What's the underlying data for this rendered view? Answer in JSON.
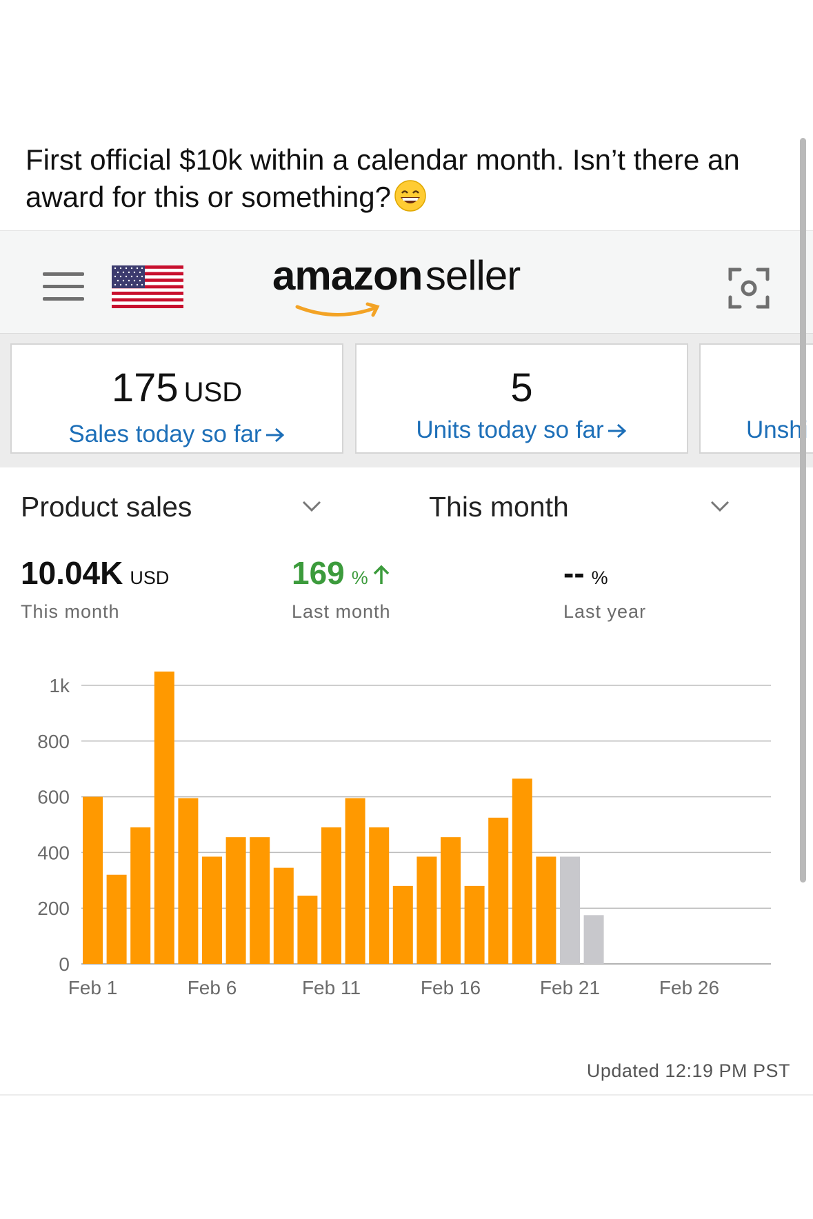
{
  "post": {
    "text": "First official $10k within a calendar month. Isn’t there an award for this or something?",
    "emoji": "grinning-face-icon"
  },
  "header": {
    "logo_bold": "amazon",
    "logo_light": "seller",
    "flag": "us-flag-icon",
    "menu_icon": "hamburger-menu-icon",
    "scan_icon": "scan-icon"
  },
  "cards": [
    {
      "value": "175",
      "unit": "USD",
      "label": "Sales today so far"
    },
    {
      "value": "5",
      "unit": "",
      "label": "Units today so far"
    },
    {
      "value": "",
      "unit": "",
      "label": "Unshi"
    }
  ],
  "dropdowns": {
    "metric": "Product sales",
    "period": "This month"
  },
  "metrics": {
    "main_value": "10.04K",
    "main_unit": "USD",
    "main_label": "This month",
    "change_value": "169",
    "change_unit": "%",
    "change_label": "Last month",
    "year_value": "--",
    "year_unit": "%",
    "year_label": "Last year",
    "colors": {
      "up": "#3c9b3c"
    }
  },
  "chart_data": {
    "type": "bar",
    "categories": [
      "Feb 1",
      "Feb 2",
      "Feb 3",
      "Feb 4",
      "Feb 5",
      "Feb 6",
      "Feb 7",
      "Feb 8",
      "Feb 9",
      "Feb 10",
      "Feb 11",
      "Feb 12",
      "Feb 13",
      "Feb 14",
      "Feb 15",
      "Feb 16",
      "Feb 17",
      "Feb 18",
      "Feb 19",
      "Feb 20",
      "Feb 21",
      "Feb 22",
      "Feb 23",
      "Feb 24",
      "Feb 25",
      "Feb 26",
      "Feb 27",
      "Feb 28",
      "Feb 29"
    ],
    "values": [
      600,
      320,
      490,
      1050,
      595,
      385,
      455,
      455,
      345,
      245,
      490,
      595,
      490,
      280,
      385,
      455,
      280,
      525,
      665,
      385,
      385,
      175,
      null,
      null,
      null,
      null,
      null,
      null,
      null
    ],
    "partial_days": [
      "Feb 21",
      "Feb 22"
    ],
    "colors": {
      "bar": "#ff9900",
      "partial": "#c8c8cc",
      "grid": "#bdbdbd"
    },
    "yticks": [
      0,
      200,
      400,
      600,
      800,
      1000
    ],
    "ytick_labels": [
      "0",
      "200",
      "400",
      "600",
      "800",
      "1k"
    ],
    "xtick_labels": [
      "Feb 1",
      "Feb 6",
      "Feb 11",
      "Feb 16",
      "Feb 21",
      "Feb 26"
    ],
    "xtick_indices": [
      0,
      5,
      10,
      15,
      20,
      25
    ],
    "ylim": [
      0,
      1000
    ],
    "grid": true,
    "title": "",
    "xlabel": "",
    "ylabel": ""
  },
  "footer": {
    "updated": "Updated 12:19 PM PST"
  }
}
